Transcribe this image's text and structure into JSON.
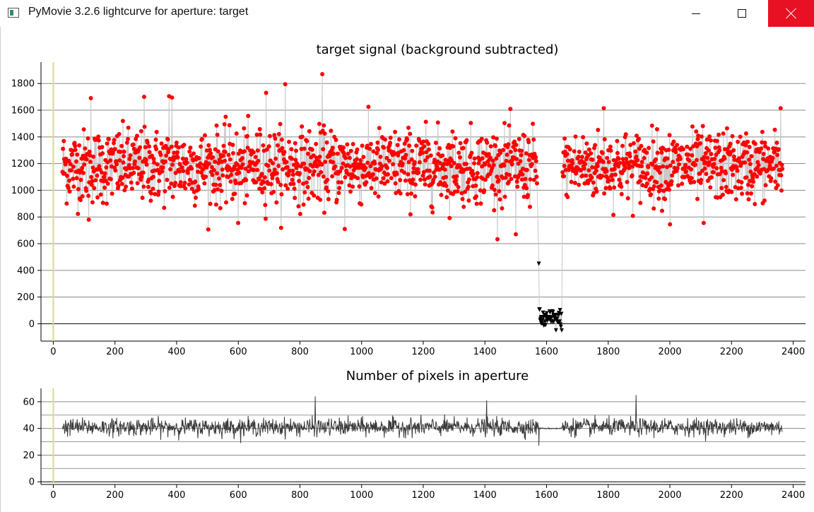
{
  "window": {
    "title": "PyMovie 3.2.6 lightcurve for aperture: target",
    "icon": "app-window-icon",
    "controls": [
      "minimize-icon",
      "maximize-icon",
      "close-icon"
    ]
  },
  "colors": {
    "signal_points": "#ff0000",
    "dropped_points": "#000000",
    "connector_line": "#c8c8c8",
    "pixel_trace": "#3a3a3a",
    "marker_line": "#d8d890",
    "close_button": "#e81123"
  },
  "chart_data": [
    {
      "type": "scatter",
      "title": "target signal (background subtracted)",
      "xlabel": "",
      "ylabel": "",
      "xlim": [
        -40,
        2440
      ],
      "ylim": [
        -130,
        1960
      ],
      "xticks": [
        0,
        200,
        400,
        600,
        800,
        1000,
        1200,
        1400,
        1600,
        1800,
        2000,
        2200,
        2400
      ],
      "xtick_labels": [
        "0",
        "200",
        "400",
        "600",
        "800",
        "1000",
        "1200",
        "1400",
        "1600",
        "1800",
        "2000",
        "2200",
        "2400"
      ],
      "yticks": [
        0,
        200,
        400,
        600,
        800,
        1000,
        1200,
        1400,
        1600,
        1800
      ],
      "ytick_labels": [
        "0",
        "200",
        "400",
        "600",
        "800",
        "1000",
        "1200",
        "1400",
        "1600",
        "1800"
      ],
      "grid": true,
      "vertical_marker_x": 0,
      "segments": [
        {
          "x_start": 30,
          "x_end": 1570,
          "mean": 1180,
          "spread": 160,
          "marker": "circle",
          "color": "#ff0000"
        },
        {
          "x_start": 1575,
          "x_end": 1650,
          "mean": 30,
          "spread": 45,
          "marker": "triangle-down",
          "color": "#000000"
        },
        {
          "x_start": 1652,
          "x_end": 2365,
          "mean": 1180,
          "spread": 150,
          "marker": "circle",
          "color": "#ff0000"
        }
      ],
      "highlighted_points": [
        {
          "x": 122,
          "y": 1690
        },
        {
          "x": 295,
          "y": 1700
        },
        {
          "x": 375,
          "y": 1705
        },
        {
          "x": 385,
          "y": 1695
        },
        {
          "x": 690,
          "y": 1730
        },
        {
          "x": 752,
          "y": 1795
        },
        {
          "x": 872,
          "y": 1870
        },
        {
          "x": 1575,
          "y": 450
        },
        {
          "x": 1785,
          "y": 1615
        },
        {
          "x": 2360,
          "y": 1615
        },
        {
          "x": 945,
          "y": 710
        },
        {
          "x": 1500,
          "y": 670
        },
        {
          "x": 600,
          "y": 755
        },
        {
          "x": 2000,
          "y": 745
        },
        {
          "x": 2110,
          "y": 755
        },
        {
          "x": 115,
          "y": 780
        }
      ]
    },
    {
      "type": "line",
      "title": "Number of pixels in aperture",
      "xlabel": "",
      "ylabel": "",
      "xlim": [
        -40,
        2440
      ],
      "ylim": [
        -2,
        70
      ],
      "xticks": [
        0,
        200,
        400,
        600,
        800,
        1000,
        1200,
        1400,
        1600,
        1800,
        2000,
        2200,
        2400
      ],
      "xtick_labels": [
        "0",
        "200",
        "400",
        "600",
        "800",
        "1000",
        "1200",
        "1400",
        "1600",
        "1800",
        "2000",
        "2200",
        "2400"
      ],
      "yticks": [
        0,
        20,
        40,
        60
      ],
      "ytick_labels": [
        "0",
        "20",
        "40",
        "60"
      ],
      "minor_grid": [
        10,
        30,
        50
      ],
      "grid": true,
      "vertical_marker_x": 0,
      "segments": [
        {
          "x_start": 30,
          "x_end": 1575,
          "mean": 41,
          "spread": 4
        },
        {
          "x_start": 1575,
          "x_end": 1650,
          "mean": 40,
          "spread": 0.3
        },
        {
          "x_start": 1650,
          "x_end": 2365,
          "mean": 41,
          "spread": 4
        }
      ],
      "spikes": [
        {
          "x": 850,
          "y": 64
        },
        {
          "x": 1890,
          "y": 65
        },
        {
          "x": 1575,
          "y": 27
        },
        {
          "x": 1405,
          "y": 61
        }
      ]
    }
  ]
}
